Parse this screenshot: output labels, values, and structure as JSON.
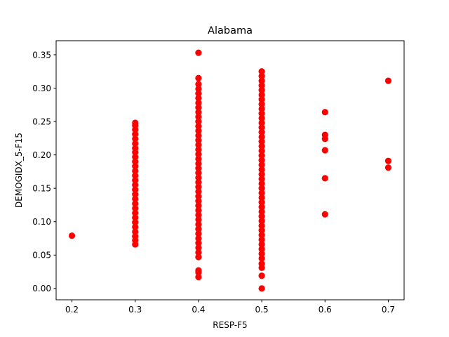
{
  "chart_data": {
    "type": "scatter",
    "title": "Alabama",
    "xlabel": "RESP-F5",
    "ylabel": "DEMOGIDX_5-F15",
    "xlim": [
      0.175,
      0.725
    ],
    "ylim": [
      -0.017,
      0.371
    ],
    "xticks": [
      "0.2",
      "0.3",
      "0.4",
      "0.5",
      "0.6",
      "0.7"
    ],
    "yticks": [
      "0.00",
      "0.05",
      "0.10",
      "0.15",
      "0.20",
      "0.25",
      "0.30",
      "0.35"
    ],
    "grid": false,
    "marker_color": "#ff0000",
    "series": [
      {
        "points": [
          [
            0.2,
            0.079
          ],
          [
            0.3,
            0.066
          ],
          [
            0.3,
            0.072
          ],
          [
            0.3,
            0.078
          ],
          [
            0.3,
            0.085
          ],
          [
            0.3,
            0.092
          ],
          [
            0.3,
            0.099
          ],
          [
            0.3,
            0.106
          ],
          [
            0.3,
            0.113
          ],
          [
            0.3,
            0.12
          ],
          [
            0.3,
            0.127
          ],
          [
            0.3,
            0.134
          ],
          [
            0.3,
            0.141
          ],
          [
            0.3,
            0.148
          ],
          [
            0.3,
            0.155
          ],
          [
            0.3,
            0.162
          ],
          [
            0.3,
            0.169
          ],
          [
            0.3,
            0.176
          ],
          [
            0.3,
            0.183
          ],
          [
            0.3,
            0.19
          ],
          [
            0.3,
            0.197
          ],
          [
            0.3,
            0.204
          ],
          [
            0.3,
            0.21
          ],
          [
            0.3,
            0.217
          ],
          [
            0.3,
            0.224
          ],
          [
            0.3,
            0.231
          ],
          [
            0.3,
            0.238
          ],
          [
            0.3,
            0.244
          ],
          [
            0.3,
            0.248
          ],
          [
            0.4,
            0.017
          ],
          [
            0.4,
            0.024
          ],
          [
            0.4,
            0.027
          ],
          [
            0.4,
            0.047
          ],
          [
            0.4,
            0.054
          ],
          [
            0.4,
            0.061
          ],
          [
            0.4,
            0.068
          ],
          [
            0.4,
            0.075
          ],
          [
            0.4,
            0.082
          ],
          [
            0.4,
            0.089
          ],
          [
            0.4,
            0.096
          ],
          [
            0.4,
            0.103
          ],
          [
            0.4,
            0.11
          ],
          [
            0.4,
            0.117
          ],
          [
            0.4,
            0.124
          ],
          [
            0.4,
            0.131
          ],
          [
            0.4,
            0.138
          ],
          [
            0.4,
            0.145
          ],
          [
            0.4,
            0.152
          ],
          [
            0.4,
            0.159
          ],
          [
            0.4,
            0.166
          ],
          [
            0.4,
            0.173
          ],
          [
            0.4,
            0.18
          ],
          [
            0.4,
            0.187
          ],
          [
            0.4,
            0.194
          ],
          [
            0.4,
            0.201
          ],
          [
            0.4,
            0.208
          ],
          [
            0.4,
            0.215
          ],
          [
            0.4,
            0.222
          ],
          [
            0.4,
            0.229
          ],
          [
            0.4,
            0.236
          ],
          [
            0.4,
            0.243
          ],
          [
            0.4,
            0.25
          ],
          [
            0.4,
            0.257
          ],
          [
            0.4,
            0.264
          ],
          [
            0.4,
            0.271
          ],
          [
            0.4,
            0.278
          ],
          [
            0.4,
            0.285
          ],
          [
            0.4,
            0.292
          ],
          [
            0.4,
            0.299
          ],
          [
            0.4,
            0.306
          ],
          [
            0.4,
            0.315
          ],
          [
            0.4,
            0.353
          ],
          [
            0.5,
            0.0
          ],
          [
            0.5,
            0.019
          ],
          [
            0.5,
            0.031
          ],
          [
            0.5,
            0.037
          ],
          [
            0.5,
            0.045
          ],
          [
            0.5,
            0.052
          ],
          [
            0.5,
            0.059
          ],
          [
            0.5,
            0.066
          ],
          [
            0.5,
            0.073
          ],
          [
            0.5,
            0.08
          ],
          [
            0.5,
            0.087
          ],
          [
            0.5,
            0.094
          ],
          [
            0.5,
            0.101
          ],
          [
            0.5,
            0.108
          ],
          [
            0.5,
            0.115
          ],
          [
            0.5,
            0.122
          ],
          [
            0.5,
            0.129
          ],
          [
            0.5,
            0.136
          ],
          [
            0.5,
            0.143
          ],
          [
            0.5,
            0.15
          ],
          [
            0.5,
            0.157
          ],
          [
            0.5,
            0.164
          ],
          [
            0.5,
            0.171
          ],
          [
            0.5,
            0.178
          ],
          [
            0.5,
            0.185
          ],
          [
            0.5,
            0.192
          ],
          [
            0.5,
            0.199
          ],
          [
            0.5,
            0.206
          ],
          [
            0.5,
            0.213
          ],
          [
            0.5,
            0.22
          ],
          [
            0.5,
            0.227
          ],
          [
            0.5,
            0.234
          ],
          [
            0.5,
            0.241
          ],
          [
            0.5,
            0.248
          ],
          [
            0.5,
            0.255
          ],
          [
            0.5,
            0.262
          ],
          [
            0.5,
            0.269
          ],
          [
            0.5,
            0.276
          ],
          [
            0.5,
            0.283
          ],
          [
            0.5,
            0.29
          ],
          [
            0.5,
            0.297
          ],
          [
            0.5,
            0.304
          ],
          [
            0.5,
            0.311
          ],
          [
            0.5,
            0.318
          ],
          [
            0.5,
            0.325
          ],
          [
            0.6,
            0.264
          ],
          [
            0.6,
            0.23
          ],
          [
            0.6,
            0.224
          ],
          [
            0.6,
            0.207
          ],
          [
            0.6,
            0.165
          ],
          [
            0.6,
            0.111
          ],
          [
            0.7,
            0.311
          ],
          [
            0.7,
            0.191
          ],
          [
            0.7,
            0.181
          ]
        ]
      }
    ]
  }
}
